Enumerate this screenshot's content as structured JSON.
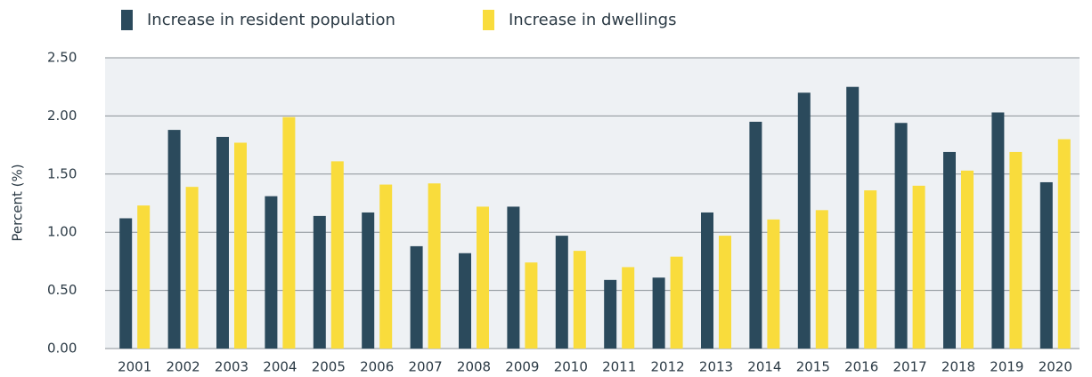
{
  "chart_data": {
    "type": "bar",
    "y_label": "Percent (%)",
    "categories": [
      "2001",
      "2002",
      "2003",
      "2004",
      "2005",
      "2006",
      "2007",
      "2008",
      "2009",
      "2010",
      "2011",
      "2012",
      "2013",
      "2014",
      "2015",
      "2016",
      "2017",
      "2018",
      "2019",
      "2020"
    ],
    "series": [
      {
        "name": "Increase in resident population",
        "color": "#2b4a5c",
        "values": [
          1.12,
          1.88,
          1.82,
          1.31,
          1.14,
          1.17,
          0.88,
          0.82,
          1.22,
          0.97,
          0.59,
          0.61,
          1.17,
          1.95,
          2.2,
          2.25,
          1.94,
          1.69,
          2.03,
          1.43
        ]
      },
      {
        "name": "Increase in dwellings",
        "color": "#f9dc3c",
        "values": [
          1.23,
          1.39,
          1.77,
          1.99,
          1.61,
          1.41,
          1.42,
          1.22,
          0.74,
          0.84,
          0.7,
          0.79,
          0.97,
          1.11,
          1.19,
          1.36,
          1.4,
          1.53,
          1.69,
          1.8
        ]
      }
    ],
    "ylim": [
      0,
      2.5
    ],
    "yticks": [
      {
        "value": 0,
        "label": "0.00"
      },
      {
        "value": 0.5,
        "label": "0.50"
      },
      {
        "value": 1,
        "label": "1.00"
      },
      {
        "value": 1.5,
        "label": "1.50"
      },
      {
        "value": 2,
        "label": "2.00"
      },
      {
        "value": 2.5,
        "label": "2.50"
      }
    ],
    "grid": true,
    "legend": "top"
  }
}
